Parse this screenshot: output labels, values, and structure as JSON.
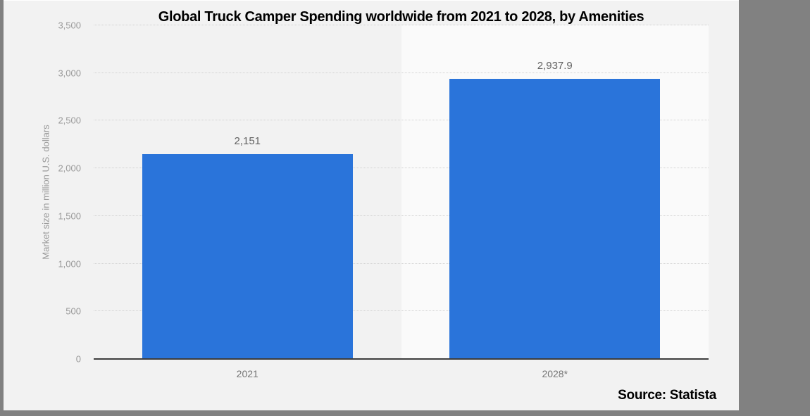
{
  "title": "Global Truck Camper Spending worldwide from 2021 to 2028, by Amenities",
  "source": "Source: Statista",
  "y_axis_title": "Market size in million U.S. dollars",
  "colors": {
    "bar": "#2a74da",
    "page_background": "#f2f2f2",
    "highlight_band": "#fafafa",
    "outer_background": "#818181",
    "gridline": "#d2d2d2",
    "axis_line": "#3d3d3d",
    "tick_text": "#9a9a9a",
    "value_text": "#636363",
    "title_text": "#000000"
  },
  "chart_data": {
    "type": "bar",
    "title": "Global Truck Camper Spending worldwide from 2021 to 2028, by Amenities",
    "categories": [
      "2021",
      "2028*"
    ],
    "values": [
      2151,
      2937.9
    ],
    "value_labels": [
      "2,151",
      "2,937.9"
    ],
    "xlabel": "",
    "ylabel": "Market size in million U.S. dollars",
    "ylim": [
      0,
      3500
    ],
    "y_ticks": [
      0,
      500,
      1000,
      1500,
      2000,
      2500,
      3000,
      3500
    ],
    "y_tick_labels": [
      "0",
      "500",
      "1,000",
      "1,500",
      "2,000",
      "2,500",
      "3,000",
      "3,500"
    ],
    "grid": "horizontal-dotted",
    "legend": "none",
    "highlighted_category": "2028*",
    "source_label": "Source: Statista"
  }
}
